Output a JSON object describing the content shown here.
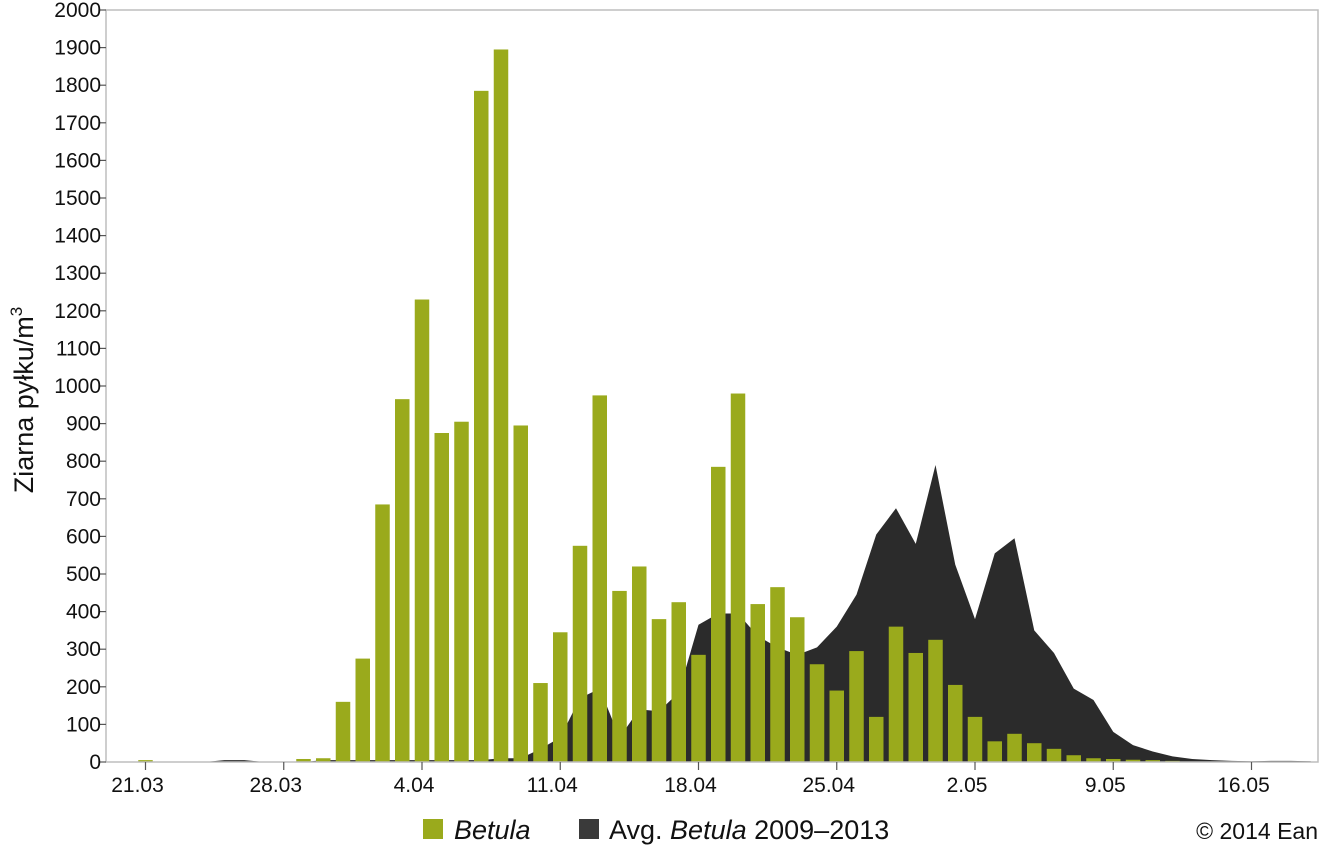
{
  "chart_data": {
    "type": "bar",
    "ylabel": "Ziarna pyłku/m",
    "ylabel_superscript": "3",
    "ylim": [
      0,
      2000
    ],
    "yticks": [
      0,
      100,
      200,
      300,
      400,
      500,
      600,
      700,
      800,
      900,
      1000,
      1100,
      1200,
      1300,
      1400,
      1500,
      1600,
      1700,
      1800,
      1900,
      2000
    ],
    "xticks": [
      "21.03",
      "28.03",
      "4.04",
      "11.04",
      "18.04",
      "25.04",
      "2.05",
      "9.05",
      "16.05"
    ],
    "grid": false,
    "legend_placement": "bottom",
    "colors": {
      "bars": "#9aaa1c",
      "average": "#2b2b2b"
    },
    "series": [
      {
        "name": "Betula",
        "type": "bar",
        "values": [
          5,
          0,
          0,
          0,
          0,
          0,
          0,
          0,
          8,
          10,
          160,
          275,
          685,
          965,
          1230,
          875,
          905,
          1785,
          1895,
          895,
          210,
          345,
          575,
          975,
          455,
          520,
          380,
          425,
          285,
          785,
          980,
          420,
          465,
          385,
          260,
          190,
          295,
          120,
          360,
          290,
          325,
          205,
          120,
          55,
          75,
          50,
          35,
          18,
          10,
          8,
          6,
          5,
          3,
          0,
          0,
          0,
          0,
          0,
          0,
          0
        ]
      },
      {
        "name": "Avg. Betula 2009–2013",
        "type": "area",
        "values": [
          0,
          0,
          0,
          0,
          5,
          5,
          0,
          0,
          0,
          5,
          5,
          5,
          5,
          5,
          5,
          5,
          5,
          5,
          10,
          10,
          35,
          65,
          170,
          195,
          65,
          140,
          135,
          185,
          365,
          395,
          395,
          335,
          305,
          285,
          305,
          360,
          445,
          605,
          675,
          580,
          790,
          525,
          380,
          555,
          595,
          350,
          290,
          195,
          165,
          80,
          45,
          28,
          15,
          8,
          5,
          3,
          2,
          3,
          3,
          2
        ]
      }
    ]
  },
  "legend": {
    "betula_label": "Betula",
    "avg_prefix": "Avg. ",
    "avg_italic": "Betula",
    "avg_suffix": " 2009–2013"
  },
  "copyright": "© 2014 Ean"
}
